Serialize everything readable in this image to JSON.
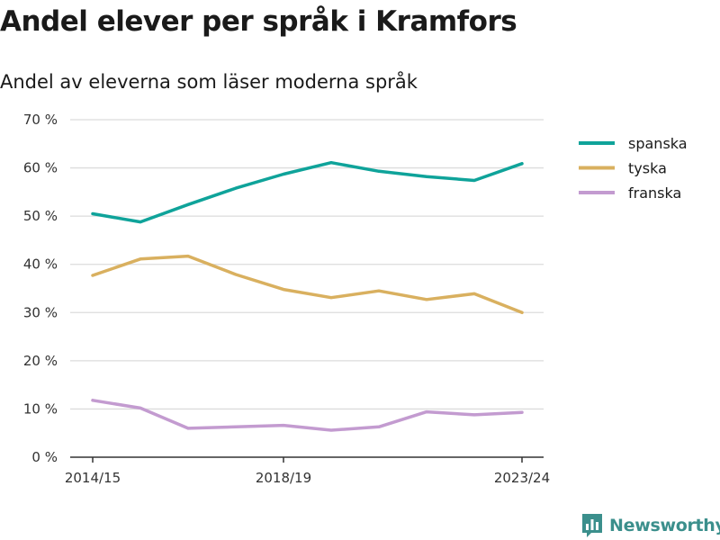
{
  "header": {
    "title": "Andel elever per språk i Kramfors",
    "subtitle": "Andel av eleverna som läser moderna språk"
  },
  "brand": {
    "name": "Newsworthy",
    "icon": "bar-chart-speech-bubble-icon"
  },
  "chart_data": {
    "type": "line",
    "title": "Andel elever per språk i Kramfors",
    "subtitle": "Andel av eleverna som läser moderna språk",
    "xlabel": "",
    "ylabel": "",
    "x": [
      "2014/15",
      "2015/16",
      "2016/17",
      "2017/18",
      "2018/19",
      "2019/20",
      "2020/21",
      "2021/22",
      "2022/23",
      "2023/24"
    ],
    "x_tick_labels": [
      "2014/15",
      "2018/19",
      "2023/24"
    ],
    "ylim": [
      0,
      70
    ],
    "y_ticks": [
      0,
      10,
      20,
      30,
      40,
      50,
      60,
      70
    ],
    "y_tick_labels": [
      "0 %",
      "10 %",
      "20 %",
      "30 %",
      "40 %",
      "50 %",
      "60 %",
      "70 %"
    ],
    "grid": true,
    "legend_position": "right",
    "series": [
      {
        "name": "spanska",
        "color": "#0fa39a",
        "values": [
          50.5,
          48.8,
          52.4,
          55.8,
          58.7,
          61.1,
          59.3,
          58.2,
          57.4,
          60.9
        ]
      },
      {
        "name": "tyska",
        "color": "#d9b05f",
        "values": [
          37.7,
          41.1,
          41.7,
          37.9,
          34.8,
          33.1,
          34.5,
          32.7,
          33.9,
          30.0
        ]
      },
      {
        "name": "franska",
        "color": "#c39bd0",
        "values": [
          11.8,
          10.2,
          6.0,
          6.3,
          6.6,
          5.6,
          6.3,
          9.4,
          8.8,
          9.3
        ]
      }
    ]
  }
}
